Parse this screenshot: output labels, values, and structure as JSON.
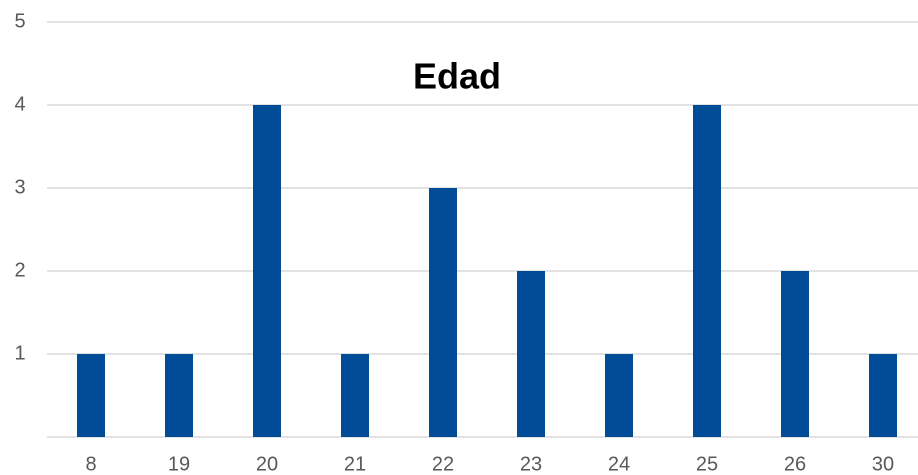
{
  "chart_data": {
    "type": "bar",
    "title": "Edad",
    "categories": [
      "8",
      "19",
      "20",
      "21",
      "22",
      "23",
      "24",
      "25",
      "26",
      "30"
    ],
    "values": [
      1,
      1,
      4,
      1,
      3,
      2,
      1,
      4,
      2,
      1
    ],
    "color": "#004c97",
    "ylim": [
      0,
      5
    ],
    "yticks": [
      1,
      2,
      3,
      4,
      5
    ],
    "grid": true
  }
}
